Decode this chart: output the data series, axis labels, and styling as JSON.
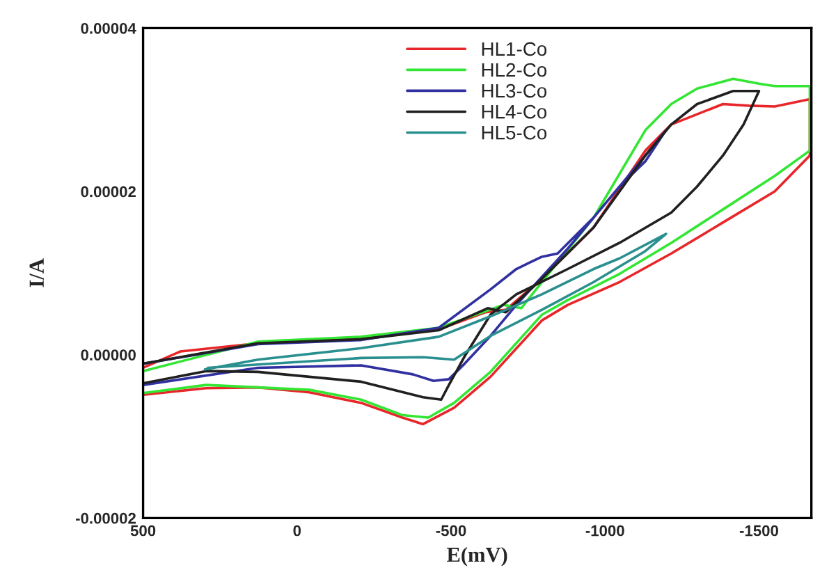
{
  "chart_data": {
    "type": "line",
    "xlabel": "E(mV)",
    "ylabel": "I/A",
    "xlim": [
      500,
      -1670
    ],
    "xticks": [
      500,
      0,
      -500,
      -1000,
      -1500
    ],
    "ylim": [
      -2e-05,
      4e-05
    ],
    "yticks": [
      {
        "value": -2e-05,
        "label": "-0.00002"
      },
      {
        "value": 0,
        "label": "0.00000"
      },
      {
        "value": 2e-05,
        "label": "0.00002"
      },
      {
        "value": 4e-05,
        "label": "0.00004"
      }
    ],
    "legend": "top",
    "grid": false,
    "marker": "none",
    "line_style": "solid",
    "series": [
      {
        "name": "HL1-Co",
        "color": "#e8262a",
        "x": [
          500,
          379,
          127,
          -208,
          -460,
          -611,
          -678,
          -795,
          -963,
          -1131,
          -1215,
          -1383,
          -1467,
          -1551,
          -1665,
          -1665,
          -1551,
          -1383,
          -1215,
          -1047,
          -879,
          -795,
          -628,
          -510,
          -409,
          -342,
          -208,
          -40,
          127,
          295,
          500
        ],
        "values": [
          -1.6e-06,
          4e-07,
          1.4e-06,
          2e-06,
          3.1e-06,
          5.2e-06,
          5.5e-06,
          9.3e-06,
          1.56e-05,
          2.5e-05,
          2.82e-05,
          3.07e-05,
          3.05e-05,
          3.04e-05,
          3.13e-05,
          2.44e-05,
          2e-05,
          1.62e-05,
          1.24e-05,
          8.9e-06,
          6.1e-06,
          4.2e-06,
          -2.7e-06,
          -6.5e-06,
          -8.5e-06,
          -7.7e-06,
          -5.9e-06,
          -4.6e-06,
          -4e-06,
          -4.1e-06,
          -4.9e-06
        ]
      },
      {
        "name": "HL2-Co",
        "color": "#33e633",
        "x": [
          500,
          127,
          -208,
          -460,
          -670,
          -728,
          -795,
          -963,
          -1131,
          -1215,
          -1299,
          -1416,
          -1500,
          -1551,
          -1665,
          -1665,
          -1551,
          -1383,
          -1215,
          -1047,
          -879,
          -795,
          -628,
          -510,
          -426,
          -342,
          -208,
          -40,
          295,
          500
        ],
        "values": [
          -2e-06,
          1.6e-06,
          2.2e-06,
          3.3e-06,
          6.1e-06,
          5.7e-06,
          8.9e-06,
          1.68e-05,
          2.75e-05,
          3.07e-05,
          3.26e-05,
          3.38e-05,
          3.32e-05,
          3.29e-05,
          3.29e-05,
          2.5e-05,
          2.19e-05,
          1.78e-05,
          1.37e-05,
          9.9e-06,
          6.7e-06,
          4.9e-06,
          -2.1e-06,
          -5.9e-06,
          -7.7e-06,
          -7.4e-06,
          -5.5e-06,
          -4.3e-06,
          -3.7e-06,
          -4.7e-06
        ]
      },
      {
        "name": "HL3-Co",
        "color": "#3030a0",
        "x": [
          500,
          127,
          -208,
          -460,
          -628,
          -712,
          -795,
          -846,
          -963,
          -1131,
          -1198,
          -1131,
          -1047,
          -879,
          -712,
          -628,
          -544,
          -493,
          -443,
          -376,
          -208,
          127,
          500
        ],
        "values": [
          -1.1e-06,
          1.3e-06,
          1.8e-06,
          3.3e-06,
          8e-06,
          1.05e-05,
          1.2e-05,
          1.24e-05,
          1.68e-05,
          2.44e-05,
          2.75e-05,
          2.37e-05,
          2.06e-05,
          1.3e-05,
          6.1e-06,
          2.3e-06,
          -1.1e-06,
          -3e-06,
          -3.2e-06,
          -2.4e-06,
          -1.3e-06,
          -1.6e-06,
          -3.7e-06
        ]
      },
      {
        "name": "HL4-Co",
        "color": "#202020",
        "x": [
          500,
          127,
          -208,
          -460,
          -619,
          -678,
          -795,
          -963,
          -1131,
          -1215,
          -1299,
          -1416,
          -1500,
          -1450,
          -1383,
          -1299,
          -1215,
          -1047,
          -879,
          -712,
          -628,
          -544,
          -493,
          -468,
          -409,
          -208,
          127,
          295,
          500
        ],
        "values": [
          -1.1e-06,
          1.4e-06,
          1.9e-06,
          3e-06,
          5.7e-06,
          5.2e-06,
          9.3e-06,
          1.56e-05,
          2.44e-05,
          2.82e-05,
          3.07e-05,
          3.23e-05,
          3.23e-05,
          2.82e-05,
          2.44e-05,
          2.06e-05,
          1.74e-05,
          1.37e-05,
          1.05e-05,
          7.4e-06,
          4.9e-06,
          -2e-07,
          -3.7e-06,
          -5.5e-06,
          -5.2e-06,
          -3.3e-06,
          -2.1e-06,
          -2e-06,
          -3.5e-06
        ]
      },
      {
        "name": "HL5-Co",
        "color": "#2a8f8f",
        "x": [
          299,
          127,
          -208,
          -460,
          -628,
          -795,
          -963,
          -1047,
          -1198,
          -1131,
          -963,
          -795,
          -628,
          -510,
          -409,
          -208,
          127,
          290
        ],
        "values": [
          -1.8e-06,
          -6e-07,
          8e-07,
          2.2e-06,
          4.7e-06,
          7.4e-06,
          1.05e-05,
          1.18e-05,
          1.48e-05,
          1.27e-05,
          8.9e-06,
          5.5e-06,
          2.3e-06,
          -6e-07,
          -3e-07,
          -4e-07,
          -1.2e-06,
          -1.6e-06
        ]
      }
    ]
  }
}
